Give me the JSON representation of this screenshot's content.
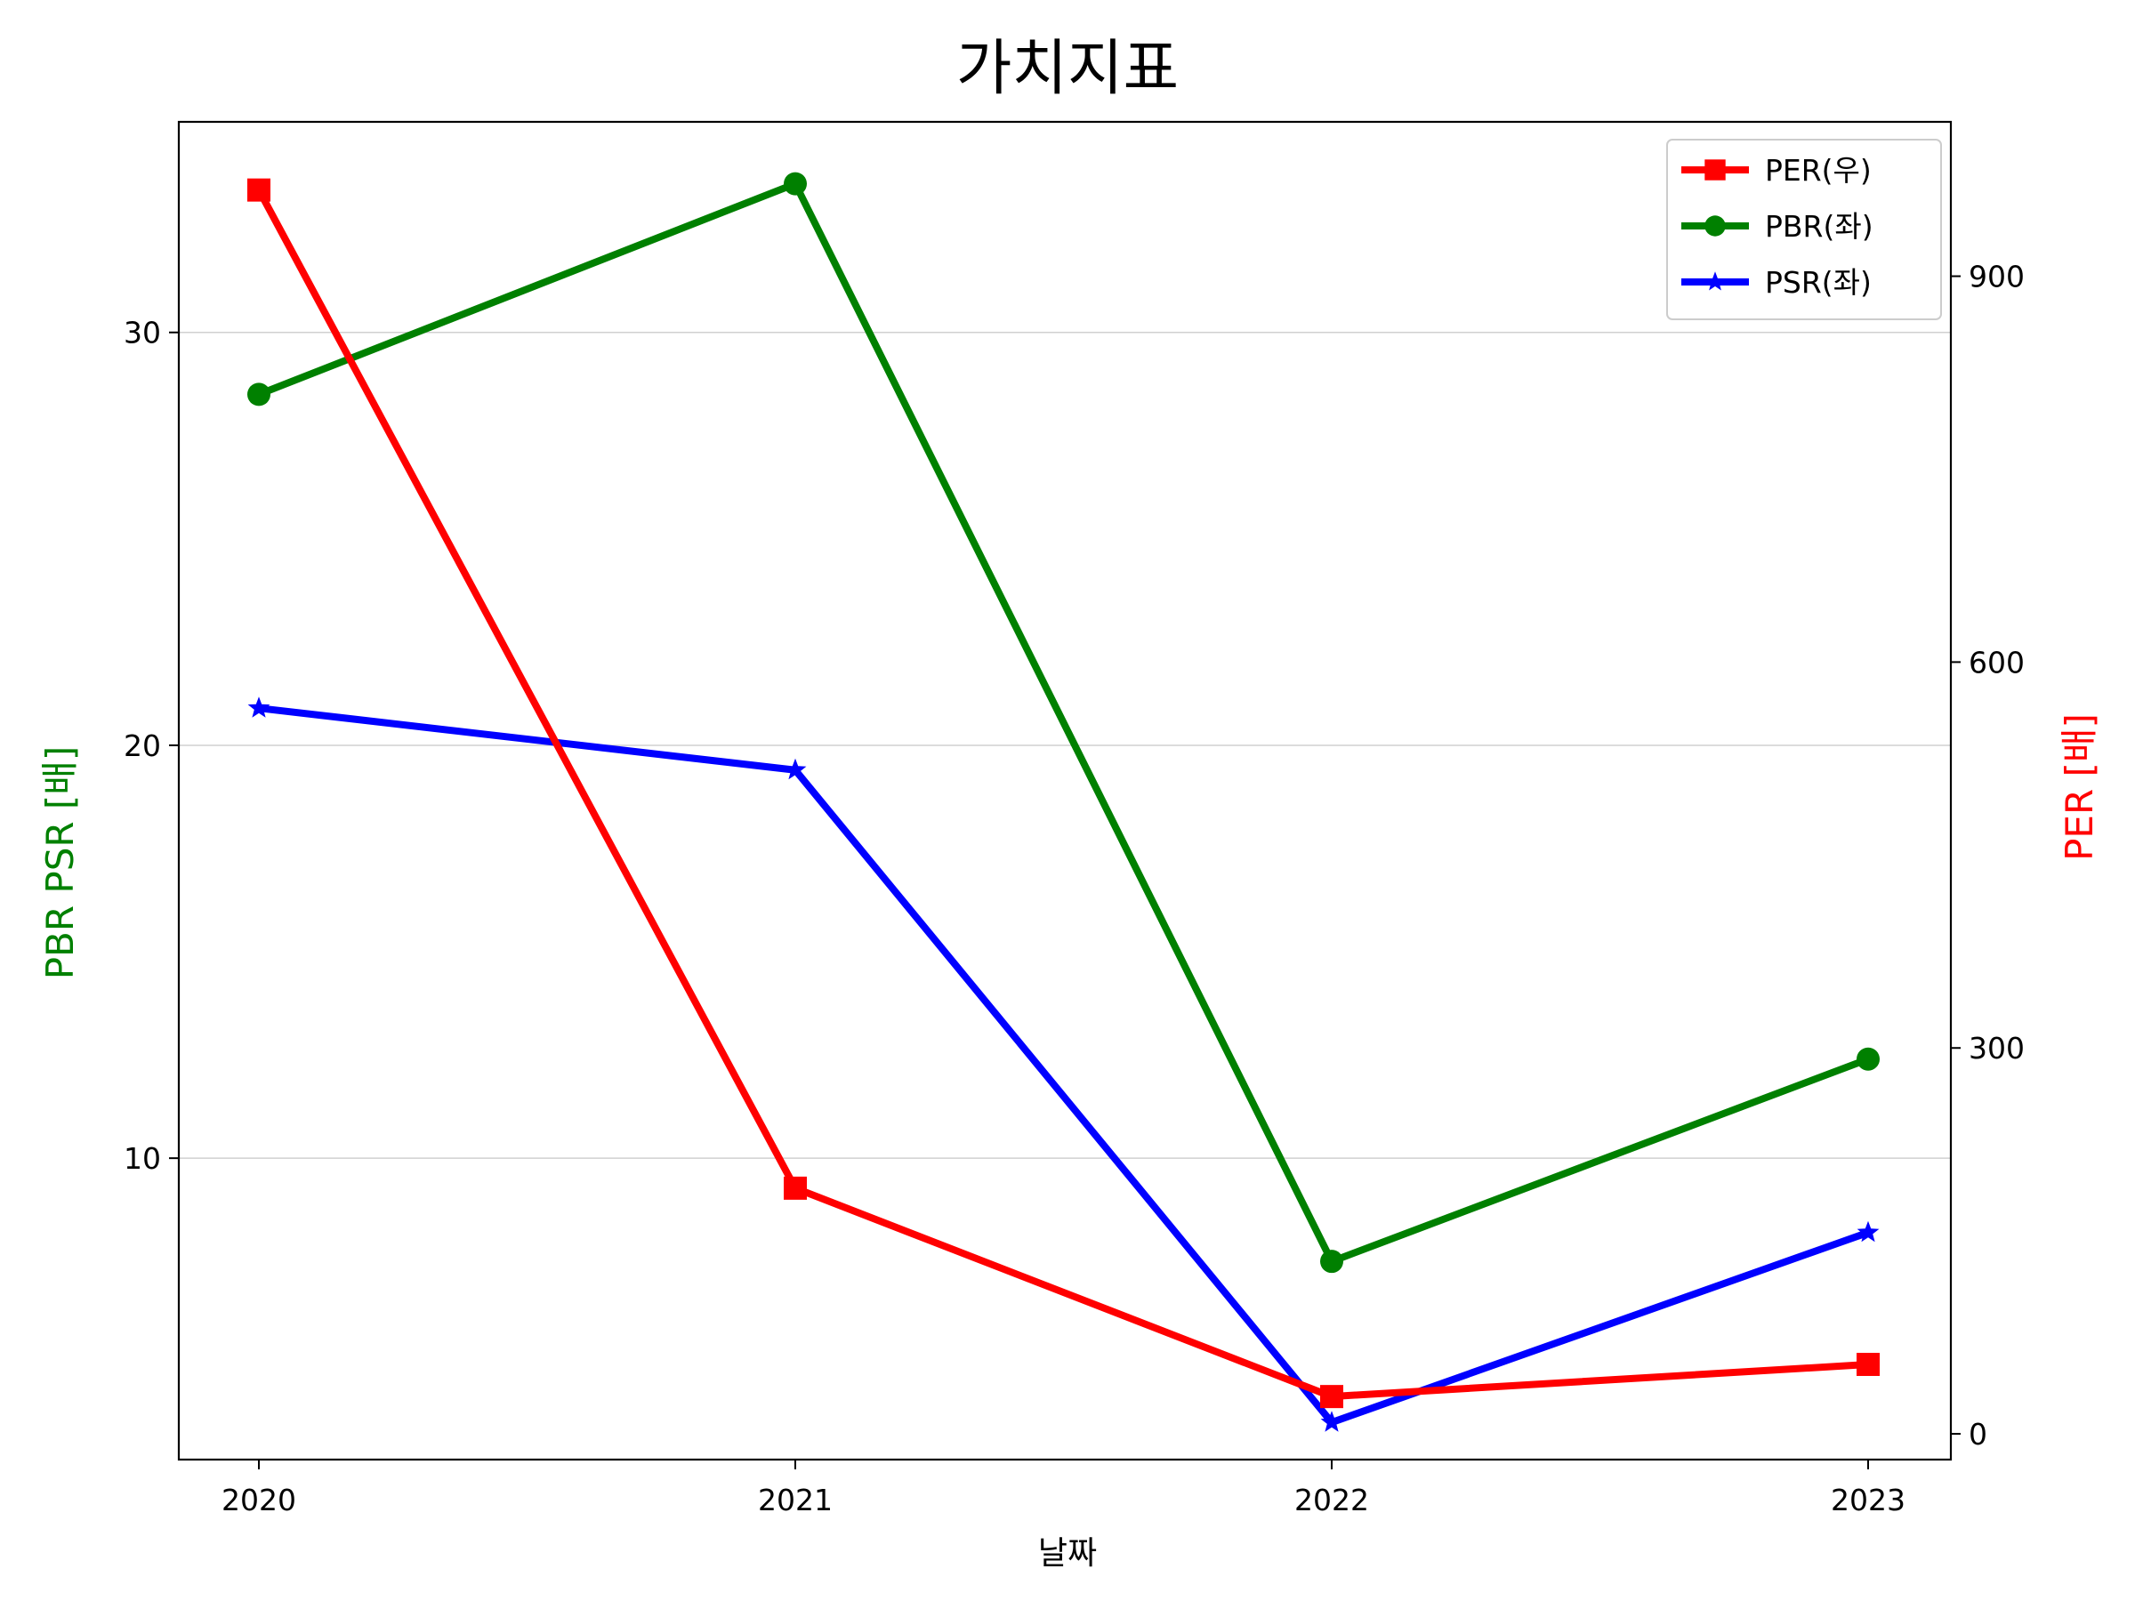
{
  "chart_data": {
    "type": "line",
    "title": "가치지표",
    "xlabel": "날짜",
    "ylabel_left": "PBR PSR [배]",
    "ylabel_right": "PER [배]",
    "ylabel_left_color": "#008000",
    "ylabel_right_color": "#ff0000",
    "categories": [
      "2020",
      "2021",
      "2022",
      "2023"
    ],
    "ylim_left": [
      2.7,
      35.1
    ],
    "ylim_right": [
      -20,
      1020
    ],
    "yticks_left": [
      10,
      20,
      30
    ],
    "yticks_right": [
      0,
      300,
      600,
      900
    ],
    "grid": "horizontal, left axis",
    "legend_position": "top-right",
    "series": [
      {
        "name": "PER(우)",
        "axis": "right",
        "color": "#ff0000",
        "marker": "square",
        "values": [
          967,
          191,
          29,
          54
        ]
      },
      {
        "name": "PBR(좌)",
        "axis": "left",
        "color": "#008000",
        "marker": "circle",
        "values": [
          28.5,
          33.6,
          7.5,
          12.4
        ]
      },
      {
        "name": "PSR(좌)",
        "axis": "left",
        "color": "#0000ff",
        "marker": "star",
        "values": [
          20.9,
          19.4,
          3.6,
          8.2
        ]
      }
    ]
  }
}
